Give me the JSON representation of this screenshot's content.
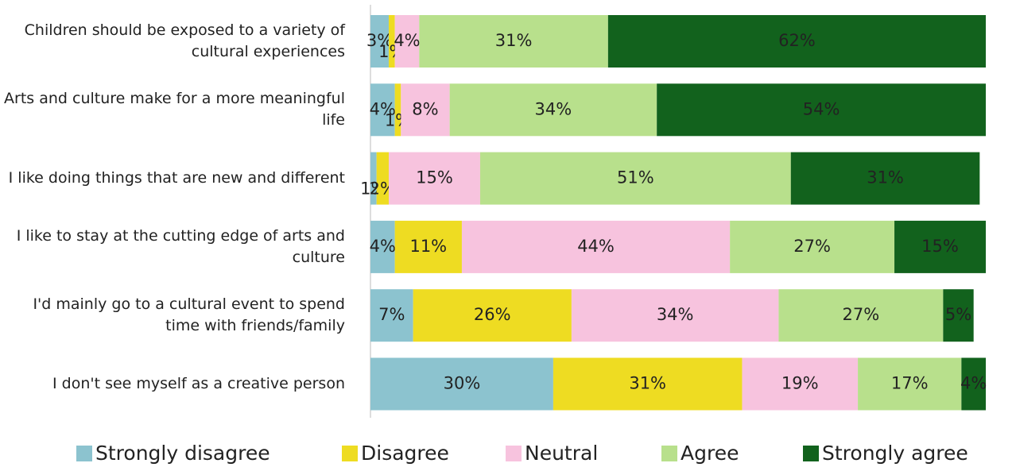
{
  "chart_data": {
    "type": "stacked_barh",
    "categories": [
      "Children should be exposed to a variety of cultural experiences",
      "Arts and culture make for a more meaningful life",
      "I like doing things that are new and different",
      "I like to stay at the cutting edge of arts and culture",
      "I'd mainly go to a cultural event to spend time with friends/family",
      "I don't see myself as a creative person"
    ],
    "series": [
      {
        "name": "Strongly disagree",
        "color": "#8cc3cf",
        "values": [
          3,
          4,
          1,
          4,
          7,
          30
        ],
        "value_labels": [
          "3%",
          "4%",
          "1%",
          "4%",
          "7%",
          "30%"
        ]
      },
      {
        "name": "Disagree",
        "color": "#eedc22",
        "values": [
          1,
          1,
          2,
          11,
          26,
          31
        ],
        "value_labels": [
          "1%",
          "1%",
          "2%",
          "11%",
          "26%",
          "31%"
        ]
      },
      {
        "name": "Neutral",
        "color": "#f7c3de",
        "values": [
          4,
          8,
          15,
          44,
          34,
          19
        ],
        "value_labels": [
          "4%",
          "8%",
          "15%",
          "44%",
          "34%",
          "19%"
        ]
      },
      {
        "name": "Agree",
        "color": "#b8e08c",
        "values": [
          31,
          34,
          51,
          27,
          27,
          17
        ],
        "value_labels": [
          "31%",
          "34%",
          "51%",
          "27%",
          "27%",
          "17%"
        ]
      },
      {
        "name": "Strongly agree",
        "color": "#12621d",
        "values": [
          62,
          54,
          31,
          15,
          5,
          4
        ],
        "value_labels": [
          "62%",
          "54%",
          "31%",
          "15%",
          "5%",
          "4%"
        ]
      }
    ]
  }
}
